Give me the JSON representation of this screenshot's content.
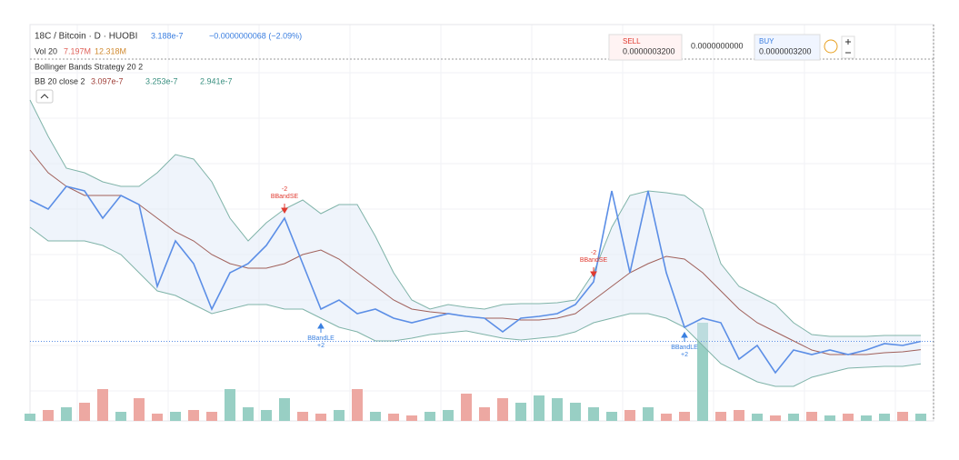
{
  "chart_data": {
    "type": "line",
    "title": "18C / Bitcoin · D · HUOBI",
    "last_price": 3.188e-07,
    "change": "−0.0000000068 (−2.09%)",
    "volume_legend": {
      "name": "Vol 20",
      "values": [
        7197000,
        12318000
      ],
      "value_labels": [
        "7.197M",
        "12.318M"
      ],
      "colors": [
        "#e0625a",
        "#d08a30"
      ]
    },
    "strategy": "Bollinger Bands Strategy 20 2",
    "bb_legend": {
      "name": "BB 20 close 2",
      "values": [
        3.097e-07,
        3.253e-07,
        2.941e-07
      ],
      "colors": [
        "#a0403a",
        "#3a9080",
        "#3a9080"
      ]
    },
    "ylim": [
      2.313e-07,
      6.343e-07
    ],
    "y2lim": [
      0,
      362700000
    ],
    "series": [
      {
        "name": "Close",
        "color": "#5b8ee6",
        "values": [
          4.743e-07,
          4.643e-07,
          4.893e-07,
          4.843e-07,
          4.543e-07,
          4.793e-07,
          4.693e-07,
          3.793e-07,
          4.293e-07,
          4.043e-07,
          3.543e-07,
          3.943e-07,
          4.043e-07,
          4.243e-07,
          4.543e-07,
          4.043e-07,
          3.543e-07,
          3.643e-07,
          3.493e-07,
          3.543e-07,
          3.443e-07,
          3.393e-07,
          3.443e-07,
          3.493e-07,
          3.463e-07,
          3.443e-07,
          3.293e-07,
          3.443e-07,
          3.463e-07,
          3.493e-07,
          3.593e-07,
          3.843e-07,
          4.843e-07,
          3.943e-07,
          4.843e-07,
          3.943e-07,
          3.343e-07,
          3.443e-07,
          3.393e-07,
          2.993e-07,
          3.143e-07,
          2.843e-07,
          3.093e-07,
          3.043e-07,
          3.093e-07,
          3.043e-07,
          3.093e-07,
          3.163e-07,
          3.143e-07,
          3.188e-07
        ]
      },
      {
        "name": "Upper",
        "color": "#7fb3a8",
        "values": [
          5.843e-07,
          5.443e-07,
          5.093e-07,
          5.043e-07,
          4.943e-07,
          4.893e-07,
          4.893e-07,
          5.043e-07,
          5.243e-07,
          5.193e-07,
          4.943e-07,
          4.543e-07,
          4.293e-07,
          4.493e-07,
          4.643e-07,
          4.743e-07,
          4.593e-07,
          4.693e-07,
          4.693e-07,
          4.343e-07,
          3.943e-07,
          3.643e-07,
          3.543e-07,
          3.593e-07,
          3.563e-07,
          3.543e-07,
          3.593e-07,
          3.603e-07,
          3.603e-07,
          3.613e-07,
          3.643e-07,
          3.943e-07,
          4.443e-07,
          4.793e-07,
          4.843e-07,
          4.823e-07,
          4.793e-07,
          4.643e-07,
          4.043e-07,
          3.793e-07,
          3.693e-07,
          3.593e-07,
          3.393e-07,
          3.263e-07,
          3.243e-07,
          3.243e-07,
          3.243e-07,
          3.253e-07,
          3.253e-07,
          3.253e-07
        ]
      },
      {
        "name": "Basis",
        "color": "#a0605a",
        "values": [
          5.293e-07,
          5.043e-07,
          4.893e-07,
          4.793e-07,
          4.793e-07,
          4.793e-07,
          4.693e-07,
          4.543e-07,
          4.393e-07,
          4.293e-07,
          4.143e-07,
          4.043e-07,
          3.993e-07,
          3.993e-07,
          4.043e-07,
          4.143e-07,
          4.193e-07,
          4.093e-07,
          3.943e-07,
          3.793e-07,
          3.643e-07,
          3.543e-07,
          3.513e-07,
          3.493e-07,
          3.463e-07,
          3.443e-07,
          3.443e-07,
          3.423e-07,
          3.423e-07,
          3.443e-07,
          3.493e-07,
          3.643e-07,
          3.793e-07,
          3.943e-07,
          4.043e-07,
          4.123e-07,
          4.093e-07,
          3.943e-07,
          3.743e-07,
          3.543e-07,
          3.393e-07,
          3.293e-07,
          3.193e-07,
          3.093e-07,
          3.043e-07,
          3.043e-07,
          3.043e-07,
          3.063e-07,
          3.073e-07,
          3.097e-07
        ]
      },
      {
        "name": "Lower",
        "color": "#7fb3a8",
        "values": [
          4.443e-07,
          4.293e-07,
          4.293e-07,
          4.293e-07,
          4.243e-07,
          4.143e-07,
          3.943e-07,
          3.743e-07,
          3.693e-07,
          3.593e-07,
          3.493e-07,
          3.543e-07,
          3.593e-07,
          3.593e-07,
          3.543e-07,
          3.543e-07,
          3.443e-07,
          3.343e-07,
          3.293e-07,
          3.193e-07,
          3.193e-07,
          3.223e-07,
          3.263e-07,
          3.283e-07,
          3.303e-07,
          3.263e-07,
          3.223e-07,
          3.203e-07,
          3.223e-07,
          3.243e-07,
          3.293e-07,
          3.393e-07,
          3.443e-07,
          3.493e-07,
          3.493e-07,
          3.443e-07,
          3.343e-07,
          3.143e-07,
          2.943e-07,
          2.843e-07,
          2.743e-07,
          2.693e-07,
          2.693e-07,
          2.793e-07,
          2.843e-07,
          2.893e-07,
          2.903e-07,
          2.913e-07,
          2.913e-07,
          2.941e-07
        ]
      },
      {
        "name": "Volume",
        "axis": "y2",
        "up_color": "#98cfc4",
        "down_color": "#eda8a2",
        "values": [
          7200000,
          10800000,
          13500000,
          18000000,
          31500000,
          9000000,
          22500000,
          7200000,
          9000000,
          10800000,
          9000000,
          31500000,
          13500000,
          10800000,
          22500000,
          9000000,
          7200000,
          10800000,
          31500000,
          9000000,
          7200000,
          5400000,
          9000000,
          10800000,
          27000000,
          13500000,
          22500000,
          18000000,
          25200000,
          22500000,
          18000000,
          13500000,
          9000000,
          10800000,
          13500000,
          7200000,
          9000000,
          97200000,
          9000000,
          10800000,
          7200000,
          5400000,
          7200000,
          9000000,
          5400000,
          7200000,
          5400000,
          7200000,
          9000000,
          7197000
        ]
      }
    ],
    "annotations": [
      {
        "index": 14,
        "kind": "short",
        "lines": [
          "-2",
          "BBandSE"
        ],
        "color": "#e03a30"
      },
      {
        "index": 31,
        "kind": "short",
        "lines": [
          "-2",
          "BBandSE"
        ],
        "color": "#e03a30"
      },
      {
        "index": 16,
        "kind": "long",
        "lines": [
          "BBandLE",
          "+2"
        ],
        "color": "#3a80e0"
      },
      {
        "index": 36,
        "kind": "long",
        "lines": [
          "BBandLE",
          "+2"
        ],
        "color": "#3a80e0"
      }
    ],
    "trade": {
      "sell_label": "SELL",
      "sell_price": "0.0000003200",
      "spread": "0.0000000000",
      "buy_label": "BUY",
      "buy_price": "0.0000003200"
    }
  }
}
